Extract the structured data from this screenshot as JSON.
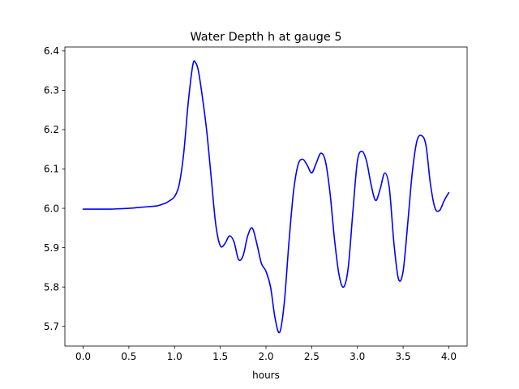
{
  "chart_data": {
    "type": "line",
    "title": "Water Depth h at gauge 5",
    "xlabel": "hours",
    "ylabel": "",
    "xlim": [
      -0.2,
      4.2
    ],
    "ylim": [
      5.65,
      6.41
    ],
    "xticks": [
      0.0,
      0.5,
      1.0,
      1.5,
      2.0,
      2.5,
      3.0,
      3.5,
      4.0
    ],
    "xtick_labels": [
      "0.0",
      "0.5",
      "1.0",
      "1.5",
      "2.0",
      "2.5",
      "3.0",
      "3.5",
      "4.0"
    ],
    "yticks": [
      5.7,
      5.8,
      5.9,
      6.0,
      6.1,
      6.2,
      6.3,
      6.4
    ],
    "ytick_labels": [
      "5.7",
      "5.8",
      "5.9",
      "6.0",
      "6.1",
      "6.2",
      "6.3",
      "6.4"
    ],
    "grid": false,
    "series": [
      {
        "color": "#0000ff",
        "x": [
          0.0,
          0.1,
          0.2,
          0.3,
          0.4,
          0.5,
          0.6,
          0.7,
          0.8,
          0.85,
          0.9,
          0.95,
          1.0,
          1.05,
          1.1,
          1.15,
          1.2,
          1.23,
          1.26,
          1.3,
          1.35,
          1.4,
          1.45,
          1.5,
          1.55,
          1.6,
          1.65,
          1.7,
          1.75,
          1.8,
          1.85,
          1.9,
          1.95,
          2.0,
          2.05,
          2.1,
          2.15,
          2.2,
          2.25,
          2.3,
          2.35,
          2.4,
          2.45,
          2.5,
          2.55,
          2.6,
          2.65,
          2.7,
          2.75,
          2.8,
          2.85,
          2.9,
          2.95,
          3.0,
          3.05,
          3.1,
          3.15,
          3.2,
          3.25,
          3.3,
          3.35,
          3.4,
          3.45,
          3.5,
          3.55,
          3.6,
          3.65,
          3.7,
          3.75,
          3.8,
          3.85,
          3.9,
          3.95,
          4.0
        ],
        "values": [
          5.998,
          5.998,
          5.998,
          5.998,
          5.999,
          6.0,
          6.002,
          6.004,
          6.006,
          6.009,
          6.013,
          6.02,
          6.03,
          6.06,
          6.14,
          6.27,
          6.365,
          6.37,
          6.35,
          6.29,
          6.2,
          6.08,
          5.96,
          5.905,
          5.91,
          5.93,
          5.915,
          5.87,
          5.88,
          5.93,
          5.95,
          5.91,
          5.86,
          5.84,
          5.8,
          5.72,
          5.685,
          5.76,
          5.91,
          6.04,
          6.11,
          6.125,
          6.11,
          6.09,
          6.115,
          6.14,
          6.12,
          6.04,
          5.92,
          5.83,
          5.8,
          5.85,
          5.99,
          6.12,
          6.145,
          6.12,
          6.06,
          6.02,
          6.05,
          6.09,
          6.05,
          5.91,
          5.82,
          5.84,
          5.96,
          6.09,
          6.17,
          6.185,
          6.16,
          6.06,
          6.0,
          5.995,
          6.02,
          6.04
        ]
      }
    ]
  }
}
